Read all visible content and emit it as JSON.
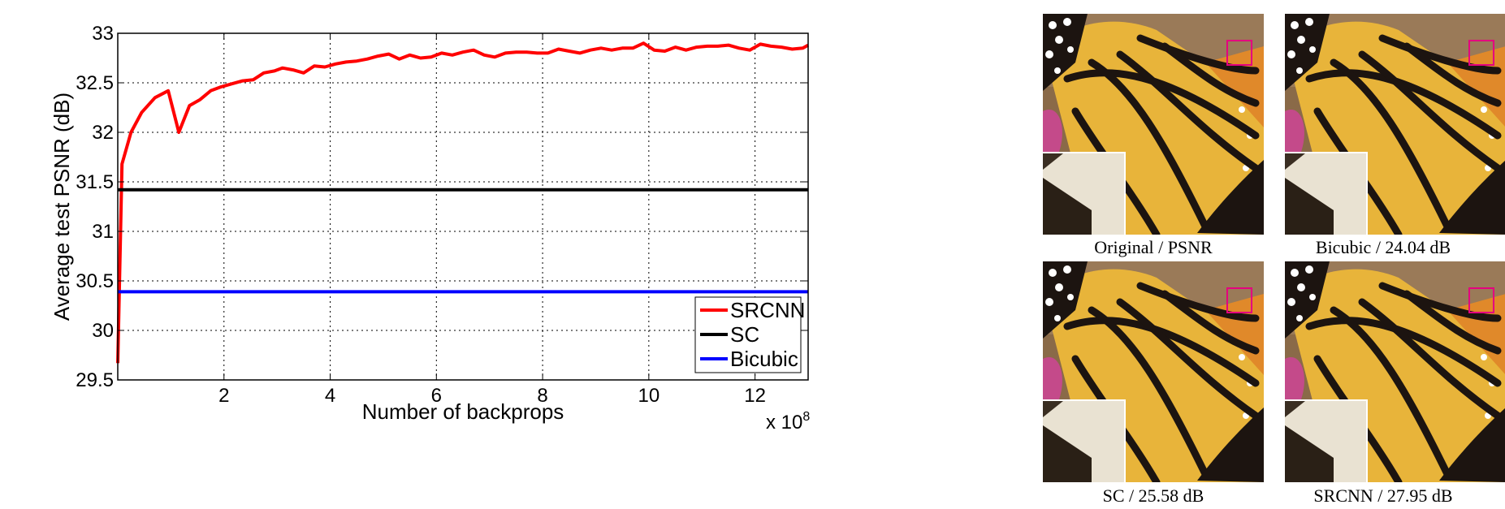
{
  "chart_data": {
    "type": "line",
    "xlabel": "Number of backprops",
    "ylabel": "Average test PSNR (dB)",
    "x_multiplier_label": "x 10",
    "x_multiplier_exponent": "8",
    "xlim": [
      0,
      13
    ],
    "ylim": [
      29.5,
      33
    ],
    "xticks": [
      2,
      4,
      6,
      8,
      10,
      12
    ],
    "yticks": [
      29.5,
      30,
      30.5,
      31,
      31.5,
      32,
      32.5,
      33
    ],
    "grid": true,
    "legend_position": "bottom-right",
    "series": [
      {
        "name": "SRCNN",
        "color": "#ff0000",
        "x": [
          0.0,
          0.08,
          0.25,
          0.45,
          0.7,
          0.95,
          1.15,
          1.35,
          1.55,
          1.75,
          1.95,
          2.15,
          2.35,
          2.55,
          2.75,
          2.95,
          3.1,
          3.3,
          3.5,
          3.7,
          3.9,
          4.1,
          4.3,
          4.5,
          4.7,
          4.9,
          5.1,
          5.3,
          5.5,
          5.7,
          5.9,
          6.1,
          6.3,
          6.5,
          6.7,
          6.9,
          7.1,
          7.3,
          7.5,
          7.7,
          7.9,
          8.1,
          8.3,
          8.5,
          8.7,
          8.9,
          9.1,
          9.3,
          9.5,
          9.7,
          9.9,
          10.1,
          10.3,
          10.5,
          10.7,
          10.9,
          11.1,
          11.3,
          11.5,
          11.7,
          11.9,
          12.1,
          12.3,
          12.5,
          12.7,
          12.9,
          13.0
        ],
        "values": [
          29.67,
          31.68,
          32.0,
          32.2,
          32.35,
          32.42,
          32.0,
          32.27,
          32.33,
          32.42,
          32.46,
          32.49,
          32.52,
          32.53,
          32.6,
          32.62,
          32.65,
          32.63,
          32.6,
          32.67,
          32.66,
          32.69,
          32.71,
          32.72,
          32.74,
          32.77,
          32.79,
          32.74,
          32.78,
          32.75,
          32.76,
          32.8,
          32.78,
          32.81,
          32.83,
          32.78,
          32.76,
          32.8,
          32.81,
          32.81,
          32.8,
          32.8,
          32.84,
          32.82,
          32.8,
          32.83,
          32.85,
          32.83,
          32.85,
          32.85,
          32.9,
          32.83,
          32.82,
          32.86,
          32.83,
          32.86,
          32.87,
          32.87,
          32.88,
          32.85,
          32.83,
          32.89,
          32.87,
          32.86,
          32.84,
          32.85,
          32.88
        ]
      },
      {
        "name": "SC",
        "color": "#000000",
        "x": [
          0,
          13
        ],
        "values": [
          31.42,
          31.42
        ]
      },
      {
        "name": "Bicubic",
        "color": "#0000ff",
        "x": [
          0,
          13
        ],
        "values": [
          30.39,
          30.39
        ]
      }
    ]
  },
  "comparison": {
    "highlight_color": "#e4007f",
    "tiles": [
      {
        "caption": "Original / PSNR"
      },
      {
        "caption": "Bicubic / 24.04 dB"
      },
      {
        "caption": "SC / 25.58 dB"
      },
      {
        "caption": "SRCNN / 27.95 dB"
      }
    ]
  }
}
